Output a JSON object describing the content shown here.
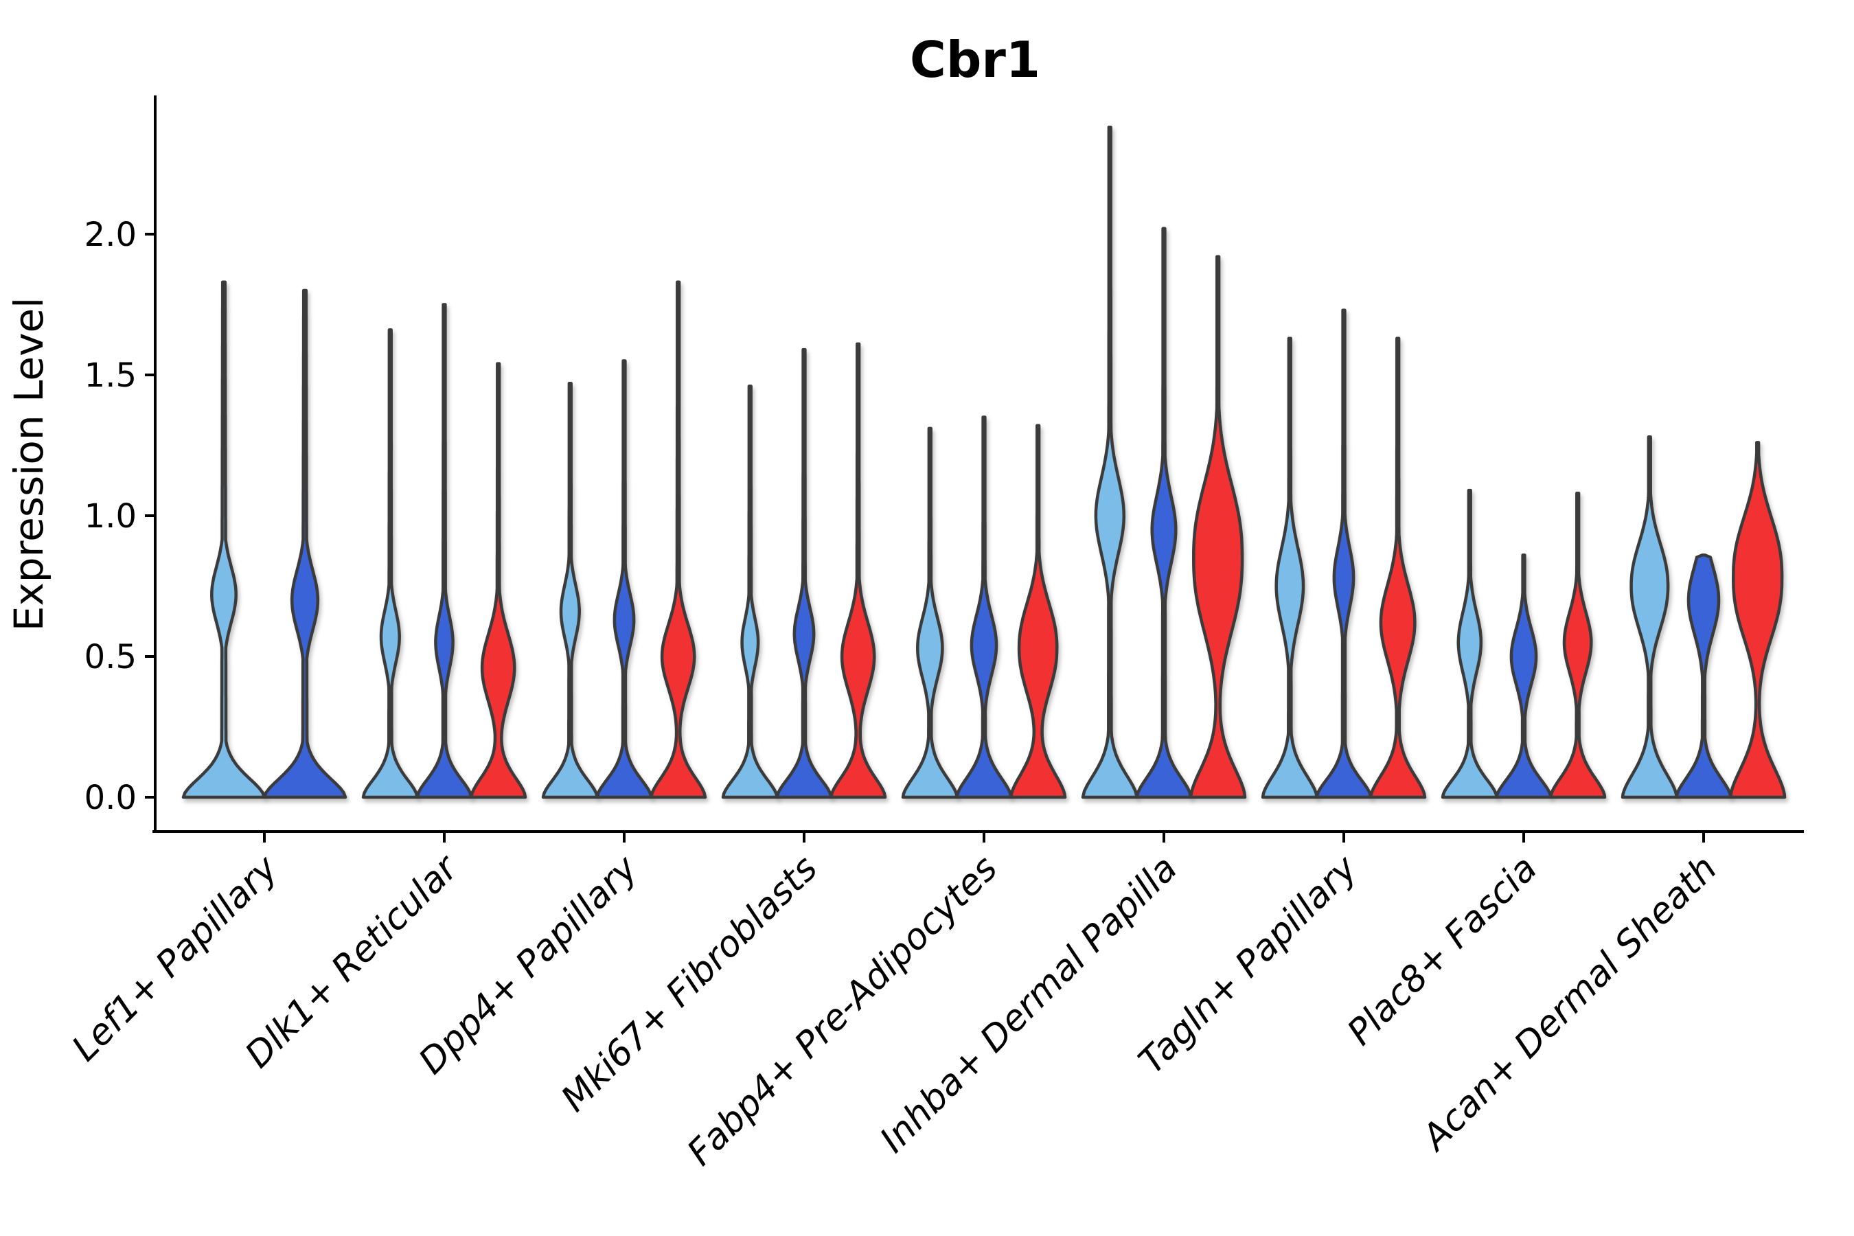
{
  "title": "Cbr1",
  "ylabel": "Expression Level",
  "colors": {
    "series_light_blue": "#7CBCE8",
    "series_dark_blue": "#3B63D8",
    "series_red": "#F23030",
    "violin_outline": "#3A3A3A",
    "axis_line": "#000000",
    "text": "#000000",
    "background": "#FFFFFF"
  },
  "y_axis": {
    "tick_labels": [
      "0.0",
      "0.5",
      "1.0",
      "1.5",
      "2.0"
    ],
    "tick_values": [
      0.0,
      0.5,
      1.0,
      1.5,
      2.0
    ],
    "ylim": [
      0.0,
      2.49
    ]
  },
  "chart_data": {
    "type": "violin",
    "title": "Cbr1",
    "xlabel": "",
    "ylabel": "Expression Level",
    "legend": "none",
    "grid": false,
    "series_colors": [
      "#7CBCE8",
      "#3B63D8",
      "#F23030"
    ],
    "categories": [
      "Lef1+ Papillary",
      "Dlk1+ Reticular",
      "Dpp4+ Papillary",
      "Mki67+ Fibroblasts",
      "Fabp4+ Pre-Adipocytes",
      "Inhba+ Dermal Papilla",
      "Tagln+ Papillary",
      "Plac8+ Fascia",
      "Acan+ Dermal Sheath"
    ],
    "groups": [
      {
        "category": "Lef1+ Papillary",
        "violins": [
          {
            "series": 0,
            "max": 1.83,
            "bulge_center": 0.72,
            "bulge_sigma": 0.14,
            "bulge_pow": 2.0,
            "bulge_amp": 0.3,
            "base_sigma": 0.105
          },
          {
            "series": 1,
            "max": 1.8,
            "bulge_center": 0.7,
            "bulge_sigma": 0.15,
            "bulge_pow": 2.0,
            "bulge_amp": 0.32,
            "base_sigma": 0.105
          }
        ]
      },
      {
        "category": "Dlk1+ Reticular",
        "violins": [
          {
            "series": 0,
            "max": 1.66,
            "bulge_center": 0.57,
            "bulge_sigma": 0.13,
            "bulge_pow": 2.0,
            "bulge_amp": 0.34,
            "base_sigma": 0.1
          },
          {
            "series": 1,
            "max": 1.75,
            "bulge_center": 0.55,
            "bulge_sigma": 0.13,
            "bulge_pow": 2.0,
            "bulge_amp": 0.32,
            "base_sigma": 0.1
          },
          {
            "series": 2,
            "max": 1.54,
            "bulge_center": 0.46,
            "bulge_sigma": 0.17,
            "bulge_pow": 2.0,
            "bulge_amp": 0.6,
            "base_sigma": 0.11
          }
        ]
      },
      {
        "category": "Dpp4+ Papillary",
        "violins": [
          {
            "series": 0,
            "max": 1.47,
            "bulge_center": 0.66,
            "bulge_sigma": 0.13,
            "bulge_pow": 2.0,
            "bulge_amp": 0.34,
            "base_sigma": 0.1
          },
          {
            "series": 1,
            "max": 1.55,
            "bulge_center": 0.63,
            "bulge_sigma": 0.13,
            "bulge_pow": 2.0,
            "bulge_amp": 0.36,
            "base_sigma": 0.1
          },
          {
            "series": 2,
            "max": 1.83,
            "bulge_center": 0.5,
            "bulge_sigma": 0.16,
            "bulge_pow": 2.0,
            "bulge_amp": 0.6,
            "base_sigma": 0.11
          }
        ]
      },
      {
        "category": "Mki67+ Fibroblasts",
        "violins": [
          {
            "series": 0,
            "max": 1.46,
            "bulge_center": 0.55,
            "bulge_sigma": 0.12,
            "bulge_pow": 2.0,
            "bulge_amp": 0.3,
            "base_sigma": 0.1
          },
          {
            "series": 1,
            "max": 1.59,
            "bulge_center": 0.58,
            "bulge_sigma": 0.13,
            "bulge_pow": 2.0,
            "bulge_amp": 0.36,
            "base_sigma": 0.1
          },
          {
            "series": 2,
            "max": 1.61,
            "bulge_center": 0.5,
            "bulge_sigma": 0.17,
            "bulge_pow": 2.0,
            "bulge_amp": 0.6,
            "base_sigma": 0.11
          }
        ]
      },
      {
        "category": "Fabp4+ Pre-Adipocytes",
        "violins": [
          {
            "series": 0,
            "max": 1.31,
            "bulge_center": 0.53,
            "bulge_sigma": 0.15,
            "bulge_pow": 2.0,
            "bulge_amp": 0.46,
            "base_sigma": 0.11
          },
          {
            "series": 1,
            "max": 1.35,
            "bulge_center": 0.54,
            "bulge_sigma": 0.15,
            "bulge_pow": 2.0,
            "bulge_amp": 0.46,
            "base_sigma": 0.11
          },
          {
            "series": 2,
            "max": 1.32,
            "bulge_center": 0.53,
            "bulge_sigma": 0.21,
            "bulge_pow": 2.2,
            "bulge_amp": 0.7,
            "base_sigma": 0.13
          }
        ]
      },
      {
        "category": "Inhba+ Dermal Papilla",
        "violins": [
          {
            "series": 0,
            "max": 2.38,
            "bulge_center": 1.0,
            "bulge_sigma": 0.19,
            "bulge_pow": 2.0,
            "bulge_amp": 0.52,
            "base_sigma": 0.12
          },
          {
            "series": 1,
            "max": 2.02,
            "bulge_center": 0.95,
            "bulge_sigma": 0.17,
            "bulge_pow": 2.0,
            "bulge_amp": 0.44,
            "base_sigma": 0.11
          },
          {
            "series": 2,
            "max": 1.92,
            "bulge_center": 0.85,
            "bulge_sigma": 0.33,
            "bulge_pow": 2.4,
            "bulge_amp": 0.9,
            "base_sigma": 0.16
          }
        ]
      },
      {
        "category": "Tagln+ Papillary",
        "violins": [
          {
            "series": 0,
            "max": 1.63,
            "bulge_center": 0.75,
            "bulge_sigma": 0.19,
            "bulge_pow": 2.0,
            "bulge_amp": 0.5,
            "base_sigma": 0.12
          },
          {
            "series": 1,
            "max": 1.73,
            "bulge_center": 0.78,
            "bulge_sigma": 0.15,
            "bulge_pow": 2.0,
            "bulge_amp": 0.36,
            "base_sigma": 0.1
          },
          {
            "series": 2,
            "max": 1.63,
            "bulge_center": 0.62,
            "bulge_sigma": 0.19,
            "bulge_pow": 2.0,
            "bulge_amp": 0.63,
            "base_sigma": 0.12
          }
        ]
      },
      {
        "category": "Plac8+ Fascia",
        "violins": [
          {
            "series": 0,
            "max": 1.09,
            "bulge_center": 0.55,
            "bulge_sigma": 0.15,
            "bulge_pow": 2.0,
            "bulge_amp": 0.42,
            "base_sigma": 0.1
          },
          {
            "series": 1,
            "max": 0.86,
            "bulge_center": 0.5,
            "bulge_sigma": 0.14,
            "bulge_pow": 2.0,
            "bulge_amp": 0.46,
            "base_sigma": 0.1
          },
          {
            "series": 2,
            "max": 1.08,
            "bulge_center": 0.55,
            "bulge_sigma": 0.15,
            "bulge_pow": 2.0,
            "bulge_amp": 0.5,
            "base_sigma": 0.11
          }
        ]
      },
      {
        "category": "Acan+ Dermal Sheath",
        "violins": [
          {
            "series": 0,
            "max": 1.28,
            "bulge_center": 0.75,
            "bulge_sigma": 0.2,
            "bulge_pow": 2.2,
            "bulge_amp": 0.68,
            "base_sigma": 0.13
          },
          {
            "series": 1,
            "max": 0.86,
            "bulge_center": 0.7,
            "bulge_sigma": 0.17,
            "bulge_pow": 2.0,
            "bulge_amp": 0.56,
            "base_sigma": 0.11
          },
          {
            "series": 2,
            "max": 1.26,
            "bulge_center": 0.78,
            "bulge_sigma": 0.27,
            "bulge_pow": 2.4,
            "bulge_amp": 0.9,
            "base_sigma": 0.16
          }
        ]
      }
    ]
  }
}
